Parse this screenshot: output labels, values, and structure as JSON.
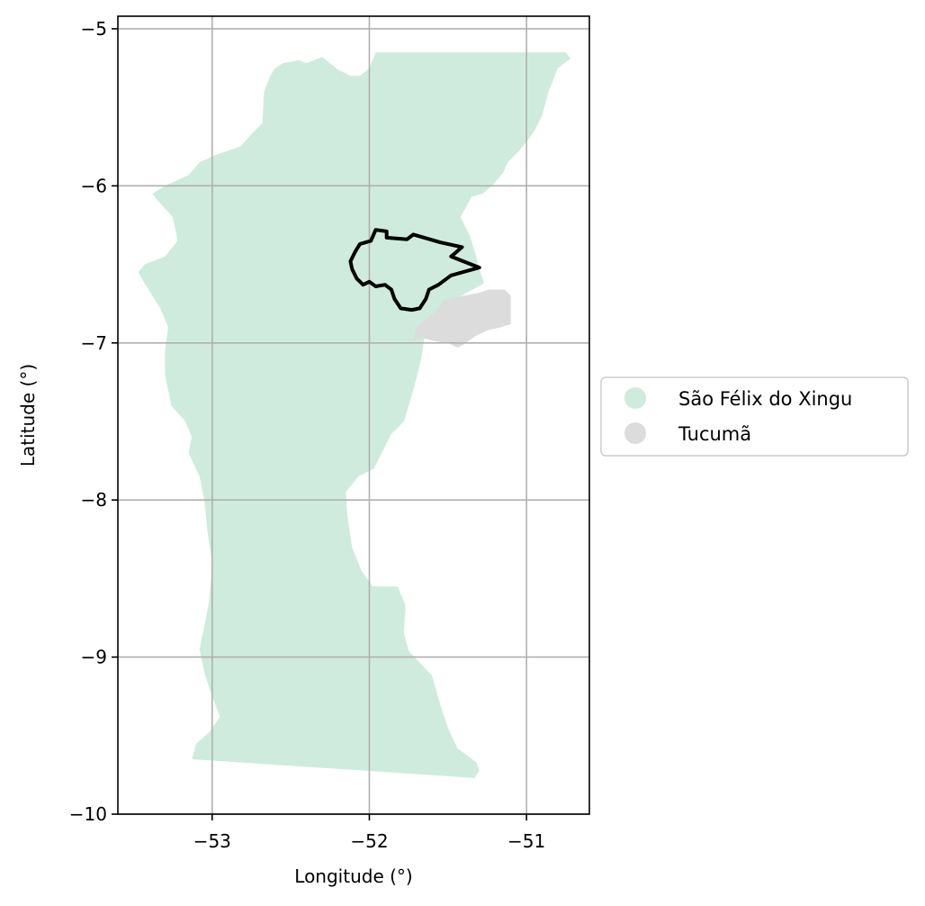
{
  "chart_data": {
    "type": "map",
    "title": "",
    "xlabel": "Longitude (°)",
    "ylabel": "Latitude (°)",
    "xlim": [
      -53.6,
      -50.6
    ],
    "ylim": [
      -10,
      -4.92
    ],
    "xticks": [
      -53,
      -52,
      -51
    ],
    "yticks": [
      -10,
      -9,
      -8,
      -7,
      -6,
      -5
    ],
    "xtick_labels": [
      "−53",
      "−52",
      "−51"
    ],
    "ytick_labels": [
      "−10",
      "−9",
      "−8",
      "−7",
      "−6",
      "−5"
    ],
    "grid": true,
    "legend_position": "right",
    "series": [
      {
        "name": "São Félix do Xingu",
        "color": "#cfebdd",
        "kind": "region"
      },
      {
        "name": "Tucumã",
        "color": "#dcdcdc",
        "kind": "region"
      },
      {
        "name": "",
        "color": "#000000",
        "kind": "outline"
      }
    ],
    "regions": {
      "sao_felix": [
        [
          -51.96,
          -5.15
        ],
        [
          -50.75,
          -5.15
        ],
        [
          -50.72,
          -5.19
        ],
        [
          -50.8,
          -5.25
        ],
        [
          -50.86,
          -5.4
        ],
        [
          -50.9,
          -5.55
        ],
        [
          -50.95,
          -5.65
        ],
        [
          -51.0,
          -5.72
        ],
        [
          -51.05,
          -5.78
        ],
        [
          -51.12,
          -5.85
        ],
        [
          -51.15,
          -5.92
        ],
        [
          -51.22,
          -6.0
        ],
        [
          -51.28,
          -6.05
        ],
        [
          -51.35,
          -6.07
        ],
        [
          -51.42,
          -6.2
        ],
        [
          -51.36,
          -6.32
        ],
        [
          -51.32,
          -6.45
        ],
        [
          -51.3,
          -6.53
        ],
        [
          -51.27,
          -6.62
        ],
        [
          -51.45,
          -6.72
        ],
        [
          -51.58,
          -6.85
        ],
        [
          -51.65,
          -6.97
        ],
        [
          -51.67,
          -7.1
        ],
        [
          -51.72,
          -7.3
        ],
        [
          -51.78,
          -7.5
        ],
        [
          -51.86,
          -7.58
        ],
        [
          -51.93,
          -7.72
        ],
        [
          -51.97,
          -7.8
        ],
        [
          -52.07,
          -7.85
        ],
        [
          -52.15,
          -7.95
        ],
        [
          -52.14,
          -8.1
        ],
        [
          -52.11,
          -8.3
        ],
        [
          -52.05,
          -8.45
        ],
        [
          -51.98,
          -8.55
        ],
        [
          -51.82,
          -8.55
        ],
        [
          -51.77,
          -8.67
        ],
        [
          -51.78,
          -8.85
        ],
        [
          -51.75,
          -8.96
        ],
        [
          -51.6,
          -9.12
        ],
        [
          -51.55,
          -9.3
        ],
        [
          -51.5,
          -9.45
        ],
        [
          -51.44,
          -9.58
        ],
        [
          -51.32,
          -9.67
        ],
        [
          -51.3,
          -9.72
        ],
        [
          -51.33,
          -9.77
        ],
        [
          -53.13,
          -9.65
        ],
        [
          -53.1,
          -9.55
        ],
        [
          -53.02,
          -9.48
        ],
        [
          -52.95,
          -9.38
        ],
        [
          -53.0,
          -9.25
        ],
        [
          -53.05,
          -9.1
        ],
        [
          -53.08,
          -8.95
        ],
        [
          -53.05,
          -8.8
        ],
        [
          -53.02,
          -8.65
        ],
        [
          -53.0,
          -8.4
        ],
        [
          -53.03,
          -8.2
        ],
        [
          -53.05,
          -8.0
        ],
        [
          -53.08,
          -7.85
        ],
        [
          -53.15,
          -7.7
        ],
        [
          -53.13,
          -7.6
        ],
        [
          -53.17,
          -7.5
        ],
        [
          -53.26,
          -7.4
        ],
        [
          -53.3,
          -7.2
        ],
        [
          -53.3,
          -7.05
        ],
        [
          -53.28,
          -6.9
        ],
        [
          -53.33,
          -6.78
        ],
        [
          -53.43,
          -6.62
        ],
        [
          -53.47,
          -6.55
        ],
        [
          -53.43,
          -6.5
        ],
        [
          -53.3,
          -6.45
        ],
        [
          -53.22,
          -6.35
        ],
        [
          -53.25,
          -6.2
        ],
        [
          -53.34,
          -6.1
        ],
        [
          -53.38,
          -6.05
        ],
        [
          -53.3,
          -6.0
        ],
        [
          -53.15,
          -5.93
        ],
        [
          -53.08,
          -5.85
        ],
        [
          -52.97,
          -5.8
        ],
        [
          -52.82,
          -5.75
        ],
        [
          -52.75,
          -5.67
        ],
        [
          -52.68,
          -5.6
        ],
        [
          -52.67,
          -5.4
        ],
        [
          -52.63,
          -5.3
        ],
        [
          -52.6,
          -5.25
        ],
        [
          -52.55,
          -5.22
        ],
        [
          -52.45,
          -5.2
        ],
        [
          -52.4,
          -5.22
        ],
        [
          -52.3,
          -5.18
        ],
        [
          -52.2,
          -5.26
        ],
        [
          -52.12,
          -5.3
        ],
        [
          -52.06,
          -5.3
        ],
        [
          -52.0,
          -5.25
        ],
        [
          -51.96,
          -5.15
        ]
      ],
      "tucuma": [
        [
          -51.53,
          -6.73
        ],
        [
          -51.45,
          -6.71
        ],
        [
          -51.4,
          -6.7
        ],
        [
          -51.3,
          -6.68
        ],
        [
          -51.24,
          -6.66
        ],
        [
          -51.14,
          -6.66
        ],
        [
          -51.1,
          -6.7
        ],
        [
          -51.1,
          -6.78
        ],
        [
          -51.1,
          -6.88
        ],
        [
          -51.16,
          -6.9
        ],
        [
          -51.25,
          -6.92
        ],
        [
          -51.33,
          -6.96
        ],
        [
          -51.4,
          -7.01
        ],
        [
          -51.44,
          -7.03
        ],
        [
          -51.5,
          -7.0
        ],
        [
          -51.58,
          -6.99
        ],
        [
          -51.66,
          -6.97
        ],
        [
          -51.72,
          -6.98
        ],
        [
          -51.7,
          -6.9
        ],
        [
          -51.66,
          -6.86
        ],
        [
          -51.6,
          -6.82
        ],
        [
          -51.55,
          -6.77
        ],
        [
          -51.53,
          -6.73
        ]
      ]
    },
    "outline": [
      [
        -51.96,
        -6.28
      ],
      [
        -51.89,
        -6.29
      ],
      [
        -51.89,
        -6.33
      ],
      [
        -51.76,
        -6.34
      ],
      [
        -51.72,
        -6.31
      ],
      [
        -51.55,
        -6.36
      ],
      [
        -51.41,
        -6.39
      ],
      [
        -51.48,
        -6.45
      ],
      [
        -51.3,
        -6.52
      ],
      [
        -51.48,
        -6.57
      ],
      [
        -51.56,
        -6.63
      ],
      [
        -51.62,
        -6.66
      ],
      [
        -51.64,
        -6.72
      ],
      [
        -51.68,
        -6.78
      ],
      [
        -51.73,
        -6.79
      ],
      [
        -51.8,
        -6.78
      ],
      [
        -51.84,
        -6.72
      ],
      [
        -51.86,
        -6.66
      ],
      [
        -51.9,
        -6.63
      ],
      [
        -51.96,
        -6.64
      ],
      [
        -52.0,
        -6.61
      ],
      [
        -52.04,
        -6.63
      ],
      [
        -52.08,
        -6.59
      ],
      [
        -52.11,
        -6.53
      ],
      [
        -52.12,
        -6.48
      ],
      [
        -52.09,
        -6.42
      ],
      [
        -52.06,
        -6.37
      ],
      [
        -51.99,
        -6.35
      ],
      [
        -51.96,
        -6.28
      ]
    ]
  }
}
